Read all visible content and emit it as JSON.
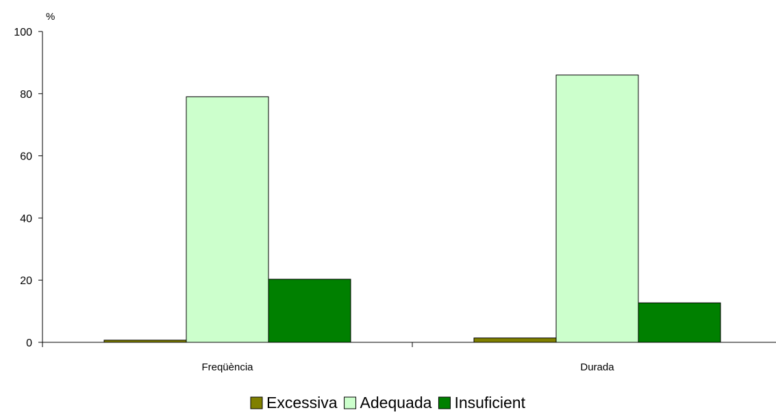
{
  "chart_data": {
    "type": "bar",
    "title": "",
    "xlabel": "",
    "ylabel": "%",
    "ylim": [
      0,
      100
    ],
    "yticks": [
      0,
      20,
      40,
      60,
      80,
      100
    ],
    "categories": [
      "Freqüència",
      "Durada"
    ],
    "series": [
      {
        "name": "Excessiva",
        "color": "#808000",
        "values": [
          0.7,
          1.4
        ]
      },
      {
        "name": "Adequada",
        "color": "#ccffcc",
        "values": [
          79,
          86
        ]
      },
      {
        "name": "Insuficient",
        "color": "#008000",
        "values": [
          20.3,
          12.7
        ]
      }
    ],
    "grid": false,
    "legend_position": "bottom"
  }
}
